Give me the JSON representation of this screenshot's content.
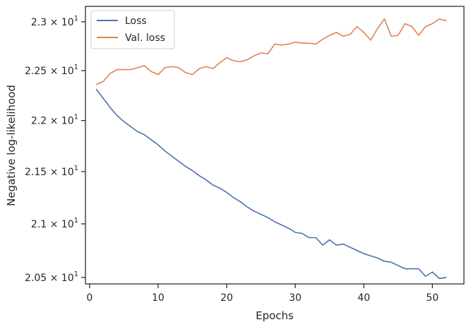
{
  "chart_data": {
    "type": "line",
    "xlabel": "Epochs",
    "ylabel": "Negative log-likelihood",
    "xlim": [
      -0.6,
      54.6
    ],
    "ylim": [
      20.44,
      23.16
    ],
    "y_scale": "log",
    "grid": false,
    "legend_position": "top-left",
    "x_ticks": [
      {
        "value": 0,
        "label": "0"
      },
      {
        "value": 10,
        "label": "10"
      },
      {
        "value": 20,
        "label": "20"
      },
      {
        "value": 30,
        "label": "30"
      },
      {
        "value": 40,
        "label": "40"
      },
      {
        "value": 50,
        "label": "50"
      }
    ],
    "y_ticks": [
      {
        "value": 20.5,
        "mantissa": "2.05",
        "exponent": "1"
      },
      {
        "value": 21.0,
        "mantissa": "2.1",
        "exponent": "1"
      },
      {
        "value": 21.5,
        "mantissa": "2.15",
        "exponent": "1"
      },
      {
        "value": 22.0,
        "mantissa": "2.2",
        "exponent": "1"
      },
      {
        "value": 22.5,
        "mantissa": "2.25",
        "exponent": "1"
      },
      {
        "value": 23.0,
        "mantissa": "2.3",
        "exponent": "1"
      }
    ],
    "x": [
      1,
      2,
      3,
      4,
      5,
      6,
      7,
      8,
      9,
      10,
      11,
      12,
      13,
      14,
      15,
      16,
      17,
      18,
      19,
      20,
      21,
      22,
      23,
      24,
      25,
      26,
      27,
      28,
      29,
      30,
      31,
      32,
      33,
      34,
      35,
      36,
      37,
      38,
      39,
      40,
      41,
      42,
      43,
      44,
      45,
      46,
      47,
      48,
      49,
      50,
      51,
      52
    ],
    "series": [
      {
        "name": "Loss",
        "color": "#4c72b0",
        "values": [
          22.31,
          22.22,
          22.13,
          22.05,
          21.99,
          21.94,
          21.89,
          21.86,
          21.81,
          21.76,
          21.7,
          21.65,
          21.6,
          21.55,
          21.51,
          21.46,
          21.42,
          21.37,
          21.34,
          21.3,
          21.25,
          21.21,
          21.16,
          21.12,
          21.09,
          21.06,
          21.02,
          20.99,
          20.96,
          20.92,
          20.91,
          20.87,
          20.87,
          20.8,
          20.85,
          20.8,
          20.81,
          20.78,
          20.75,
          20.72,
          20.7,
          20.68,
          20.65,
          20.64,
          20.61,
          20.58,
          20.58,
          20.58,
          20.51,
          20.55,
          20.49,
          20.5
        ]
      },
      {
        "name": "Val. loss",
        "color": "#dd8452",
        "values": [
          22.36,
          22.39,
          22.47,
          22.51,
          22.51,
          22.51,
          22.53,
          22.55,
          22.49,
          22.46,
          22.53,
          22.54,
          22.53,
          22.48,
          22.46,
          22.52,
          22.54,
          22.52,
          22.58,
          22.63,
          22.6,
          22.59,
          22.61,
          22.65,
          22.68,
          22.67,
          22.77,
          22.76,
          22.77,
          22.79,
          22.78,
          22.78,
          22.77,
          22.82,
          22.86,
          22.89,
          22.85,
          22.87,
          22.95,
          22.89,
          22.81,
          22.93,
          23.03,
          22.85,
          22.86,
          22.98,
          22.95,
          22.86,
          22.95,
          22.98,
          23.03,
          23.01
        ]
      }
    ]
  }
}
